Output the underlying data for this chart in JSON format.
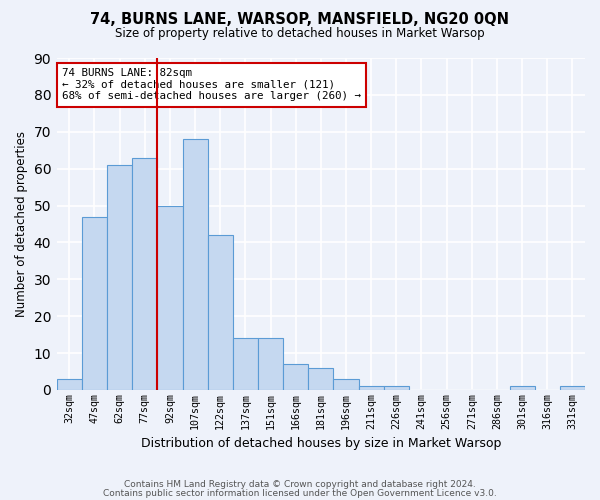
{
  "title": "74, BURNS LANE, WARSOP, MANSFIELD, NG20 0QN",
  "subtitle": "Size of property relative to detached houses in Market Warsop",
  "xlabel": "Distribution of detached houses by size in Market Warsop",
  "ylabel": "Number of detached properties",
  "bin_labels": [
    "32sqm",
    "47sqm",
    "62sqm",
    "77sqm",
    "92sqm",
    "107sqm",
    "122sqm",
    "137sqm",
    "151sqm",
    "166sqm",
    "181sqm",
    "196sqm",
    "211sqm",
    "226sqm",
    "241sqm",
    "256sqm",
    "271sqm",
    "286sqm",
    "301sqm",
    "316sqm",
    "331sqm"
  ],
  "values": [
    3,
    47,
    61,
    63,
    50,
    68,
    42,
    14,
    14,
    7,
    6,
    3,
    1,
    1,
    0,
    0,
    0,
    0,
    1,
    0,
    1
  ],
  "bar_facecolor": "#c5d8f0",
  "bar_edgecolor": "#5b9bd5",
  "property_size_idx": 3,
  "vline_color": "#cc0000",
  "annotation_line1": "74 BURNS LANE: 82sqm",
  "annotation_line2": "← 32% of detached houses are smaller (121)",
  "annotation_line3": "68% of semi-detached houses are larger (260) →",
  "annotation_boxcolor": "white",
  "annotation_edgecolor": "#cc0000",
  "ylim": [
    0,
    90
  ],
  "yticks": [
    0,
    10,
    20,
    30,
    40,
    50,
    60,
    70,
    80,
    90
  ],
  "background_color": "#eef2fa",
  "grid_color": "white",
  "footer_line1": "Contains HM Land Registry data © Crown copyright and database right 2024.",
  "footer_line2": "Contains public sector information licensed under the Open Government Licence v3.0."
}
